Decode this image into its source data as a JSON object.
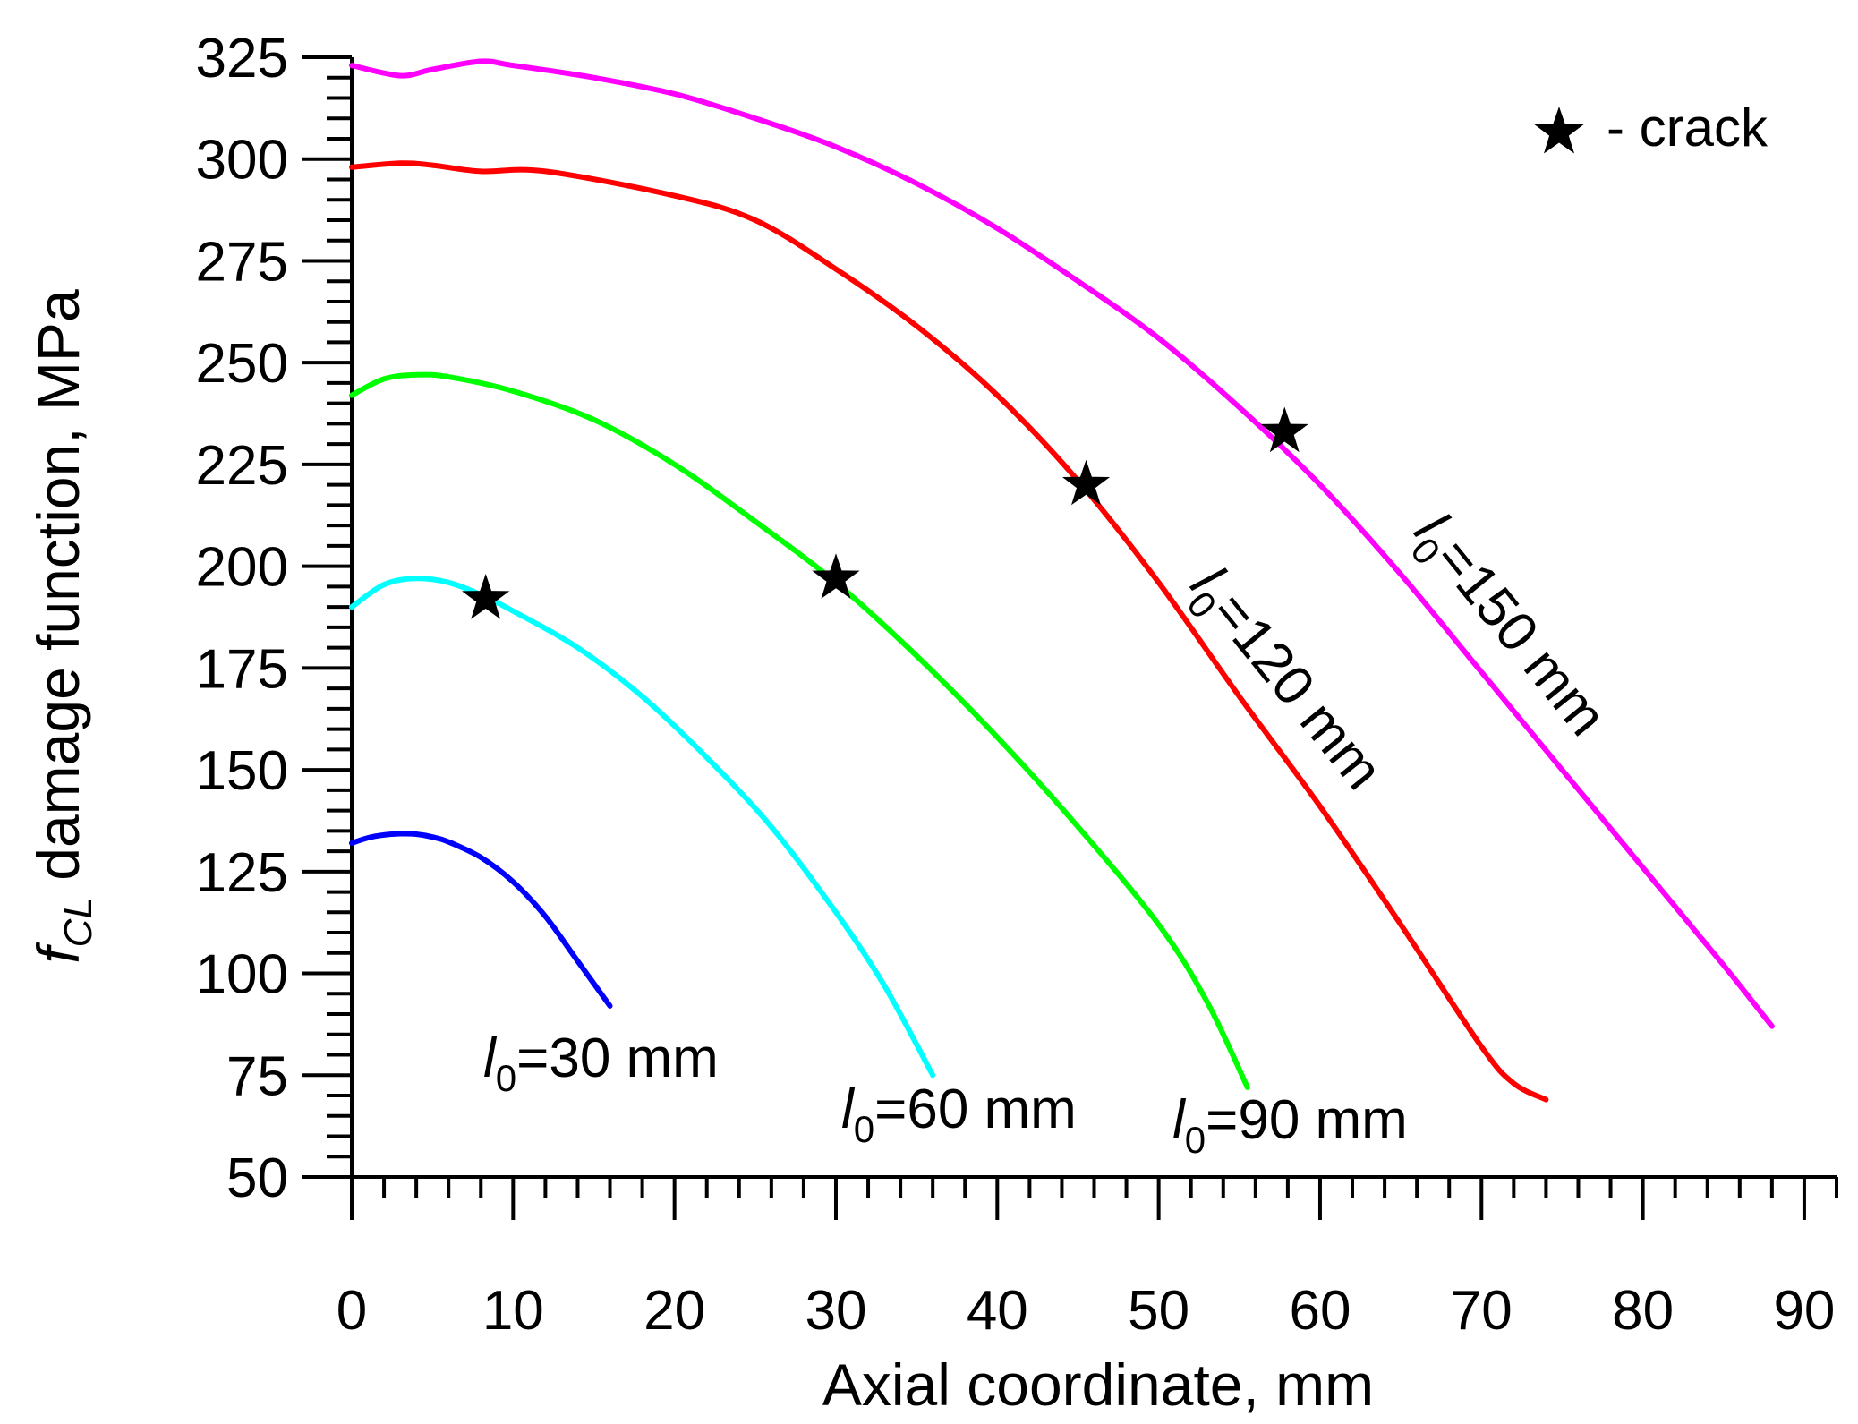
{
  "chart_data": {
    "type": "line",
    "title": "",
    "xlabel": "Axial coordinate, mm",
    "ylabel": {
      "symbol": "f",
      "subscript": "CL",
      "text": " damage function, MPa"
    },
    "xlim": [
      0,
      92
    ],
    "ylim": [
      50,
      325
    ],
    "xticks": [
      0,
      10,
      20,
      30,
      40,
      50,
      60,
      70,
      80,
      90
    ],
    "yticks": [
      50,
      75,
      100,
      125,
      150,
      175,
      200,
      225,
      250,
      275,
      300,
      325
    ],
    "grid": false,
    "legend": {
      "position": "top-right",
      "marker": "star",
      "text": "- crack"
    },
    "series": [
      {
        "name": "l0=30 mm",
        "label": {
          "prefix": "l",
          "sub": "0",
          "text": "=30 mm"
        },
        "color": "#0000ff",
        "x": [
          0,
          1,
          2,
          3,
          4,
          5,
          6,
          8,
          10,
          12,
          14,
          16
        ],
        "y": [
          132,
          133.3,
          134,
          134.3,
          134.2,
          133.5,
          132.3,
          128.5,
          122.5,
          114,
          103,
          92
        ],
        "crack": null
      },
      {
        "name": "l0=60 mm",
        "label": {
          "prefix": "l",
          "sub": "0",
          "text": "=60 mm"
        },
        "color": "#00ffff",
        "x": [
          0,
          2,
          4,
          6,
          8,
          10,
          14,
          18,
          22,
          26,
          30,
          33,
          36
        ],
        "y": [
          190,
          195.5,
          197,
          196,
          193,
          189,
          180,
          168,
          153,
          136,
          115,
          97,
          75
        ],
        "crack": {
          "x": 8.3,
          "y": 192
        }
      },
      {
        "name": "l0=90 mm",
        "label": {
          "prefix": "l",
          "sub": "0",
          "text": "=90 mm"
        },
        "color": "#00ff00",
        "x": [
          0,
          2,
          4,
          6,
          10,
          15,
          20,
          25,
          30,
          35,
          40,
          45,
          50,
          53,
          55.5
        ],
        "y": [
          242,
          246,
          247,
          246.5,
          243,
          236,
          225,
          211,
          196,
          178,
          158,
          136,
          112,
          93,
          72
        ],
        "crack": {
          "x": 30,
          "y": 197
        }
      },
      {
        "name": "l0=120 mm",
        "label": {
          "prefix": "l",
          "sub": "0",
          "text": "=120 mm"
        },
        "color": "#ff0000",
        "x": [
          0,
          3,
          5,
          8,
          12,
          20,
          25,
          30,
          35,
          40,
          45,
          50,
          55,
          60,
          65,
          70,
          72,
          74
        ],
        "y": [
          298,
          299,
          298.5,
          297,
          297,
          291,
          285,
          273,
          259,
          242,
          221,
          196,
          168,
          141,
          112,
          82,
          73,
          69
        ],
        "crack": {
          "x": 45.5,
          "y": 220
        }
      },
      {
        "name": "l0=150 mm",
        "label": {
          "prefix": "l",
          "sub": "0",
          "text": "=150 mm"
        },
        "color": "#ff00ff",
        "x": [
          0,
          3,
          5,
          8,
          10,
          15,
          20,
          25,
          30,
          35,
          40,
          45,
          50,
          55,
          60,
          65,
          70,
          75,
          80,
          85,
          88
        ],
        "y": [
          323,
          320.5,
          322,
          324,
          323,
          320,
          316,
          310,
          303,
          294,
          283,
          270,
          256,
          239,
          220,
          198,
          174,
          150,
          126,
          102,
          87
        ],
        "crack": {
          "x": 57.8,
          "y": 233
        }
      }
    ]
  }
}
